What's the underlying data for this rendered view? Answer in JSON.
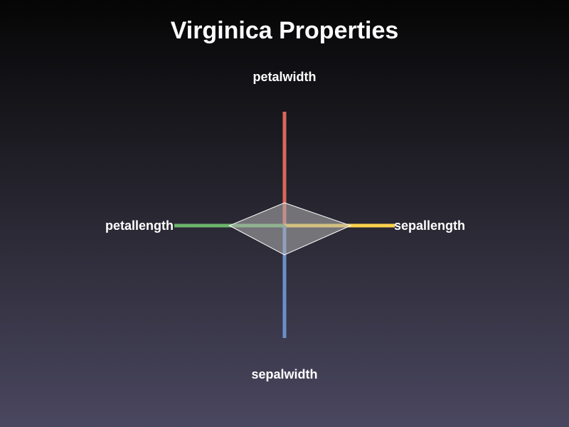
{
  "chart_data": {
    "type": "radar",
    "title": "Virginica Properties",
    "axes": [
      "petalwidth",
      "sepallength",
      "sepalwidth",
      "petallength"
    ],
    "axis_colors": [
      "#d9665a",
      "#ffd34d",
      "#6b8fc9",
      "#6db36d"
    ],
    "series": [
      {
        "values": [
          0.2,
          0.6,
          0.26,
          0.5
        ]
      }
    ],
    "range": [
      0,
      1
    ],
    "fill_color": "#b0b0b0",
    "grid": false,
    "legend": "none"
  }
}
